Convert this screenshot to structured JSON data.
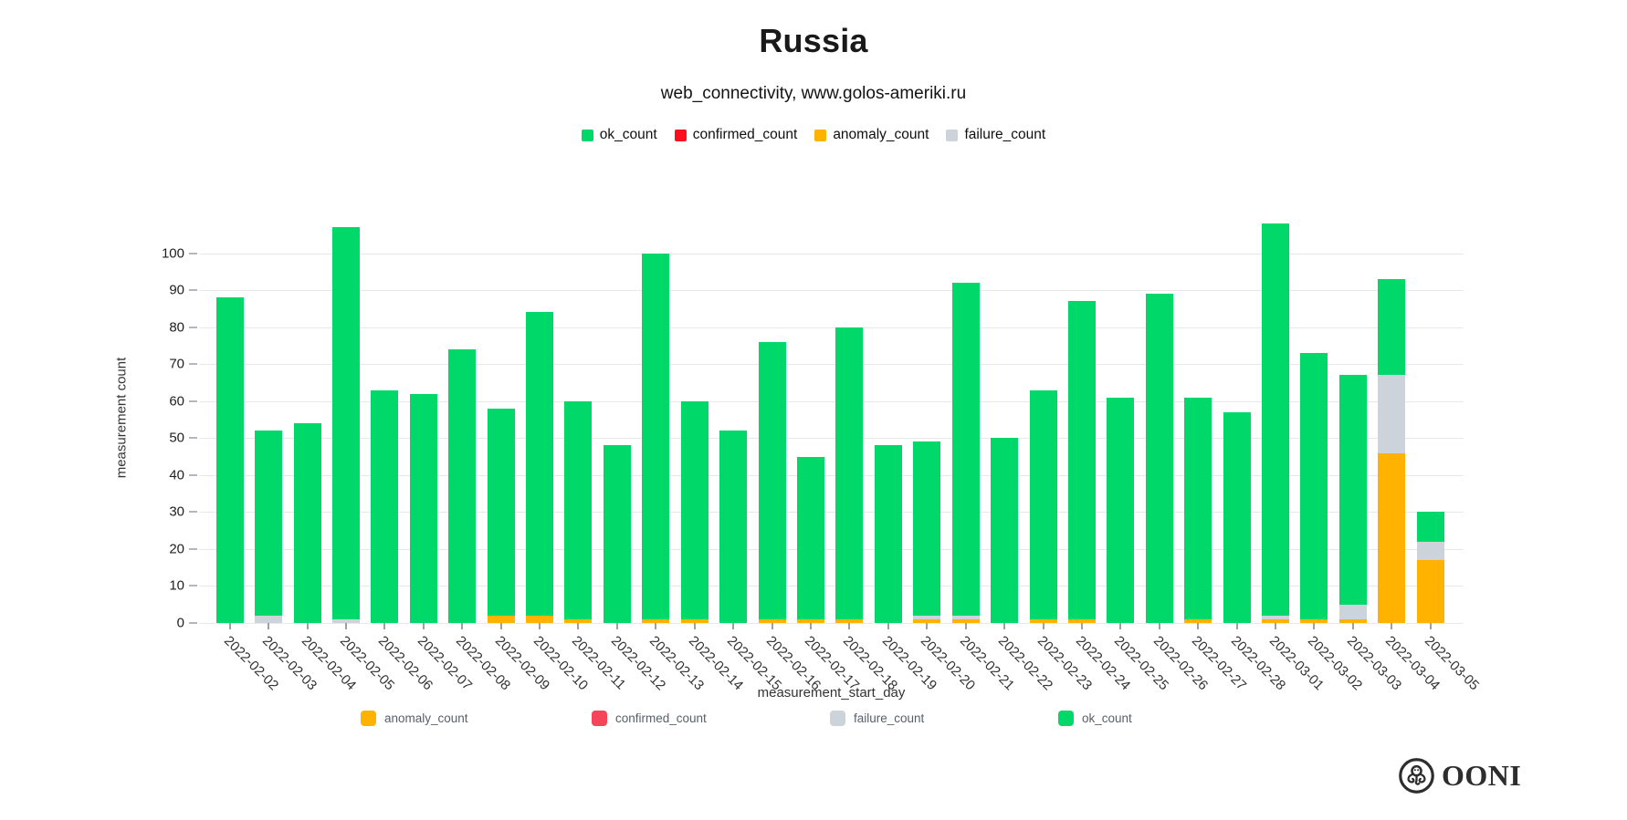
{
  "title": "Russia",
  "subtitle": "web_connectivity, www.golos-ameriki.ru",
  "top_legend": [
    {
      "label": "ok_count",
      "color": "#00d96a"
    },
    {
      "label": "confirmed_count",
      "color": "#fb0f1e"
    },
    {
      "label": "anomaly_count",
      "color": "#ffb300"
    },
    {
      "label": "failure_count",
      "color": "#ccd3db"
    }
  ],
  "bottom_legend": [
    {
      "label": "anomaly_count",
      "color": "#ffb300"
    },
    {
      "label": "confirmed_count",
      "color": "#f4455a"
    },
    {
      "label": "failure_count",
      "color": "#ccd3db"
    },
    {
      "label": "ok_count",
      "color": "#00d96a"
    }
  ],
  "footer": {
    "logo_text": "OONI"
  },
  "chart_data": {
    "type": "bar",
    "stacked": true,
    "title": "Russia",
    "subtitle": "web_connectivity, www.golos-ameriki.ru",
    "xlabel": "measurement_start_day",
    "ylabel": "measurement count",
    "ylim": [
      0,
      110
    ],
    "yticks": [
      0,
      10,
      20,
      30,
      40,
      50,
      60,
      70,
      80,
      90,
      100
    ],
    "grid": true,
    "legend_position": "top",
    "categories": [
      "2022-02-02",
      "2022-02-03",
      "2022-02-04",
      "2022-02-05",
      "2022-02-06",
      "2022-02-07",
      "2022-02-08",
      "2022-02-09",
      "2022-02-10",
      "2022-02-11",
      "2022-02-12",
      "2022-02-13",
      "2022-02-14",
      "2022-02-15",
      "2022-02-16",
      "2022-02-17",
      "2022-02-18",
      "2022-02-19",
      "2022-02-20",
      "2022-02-21",
      "2022-02-22",
      "2022-02-23",
      "2022-02-24",
      "2022-02-25",
      "2022-02-26",
      "2022-02-27",
      "2022-02-28",
      "2022-03-01",
      "2022-03-02",
      "2022-03-03",
      "2022-03-04",
      "2022-03-05"
    ],
    "series": [
      {
        "name": "anomaly_count",
        "color": "#ffb300",
        "values": [
          0,
          0,
          0,
          0,
          0,
          0,
          0,
          2,
          2,
          1,
          0,
          1,
          1,
          0,
          1,
          1,
          1,
          0,
          1,
          1,
          0,
          1,
          1,
          0,
          0,
          1,
          0,
          1,
          1,
          1,
          46,
          17
        ]
      },
      {
        "name": "confirmed_count",
        "color": "#fb0f1e",
        "values": [
          0,
          0,
          0,
          0,
          0,
          0,
          0,
          0,
          0,
          0,
          0,
          0,
          0,
          0,
          0,
          0,
          0,
          0,
          0,
          0,
          0,
          0,
          0,
          0,
          0,
          0,
          0,
          0,
          0,
          0,
          0,
          0
        ]
      },
      {
        "name": "failure_count",
        "color": "#ccd3db",
        "values": [
          0,
          2,
          0,
          1,
          0,
          0,
          0,
          0,
          0,
          0,
          0,
          0,
          0,
          0,
          0,
          0,
          0,
          0,
          1,
          1,
          0,
          0,
          0,
          0,
          0,
          0,
          0,
          1,
          0,
          4,
          21,
          5
        ]
      },
      {
        "name": "ok_count",
        "color": "#00d96a",
        "values": [
          88,
          50,
          54,
          106,
          63,
          62,
          74,
          56,
          82,
          59,
          48,
          99,
          59,
          52,
          75,
          44,
          79,
          48,
          47,
          90,
          50,
          62,
          86,
          61,
          89,
          60,
          57,
          106,
          72,
          62,
          26,
          8
        ]
      }
    ],
    "totals": [
      88,
      52,
      54,
      107,
      63,
      62,
      74,
      58,
      84,
      60,
      48,
      100,
      60,
      52,
      76,
      45,
      80,
      48,
      49,
      92,
      50,
      63,
      87,
      61,
      89,
      61,
      57,
      108,
      73,
      67,
      93,
      30
    ]
  }
}
